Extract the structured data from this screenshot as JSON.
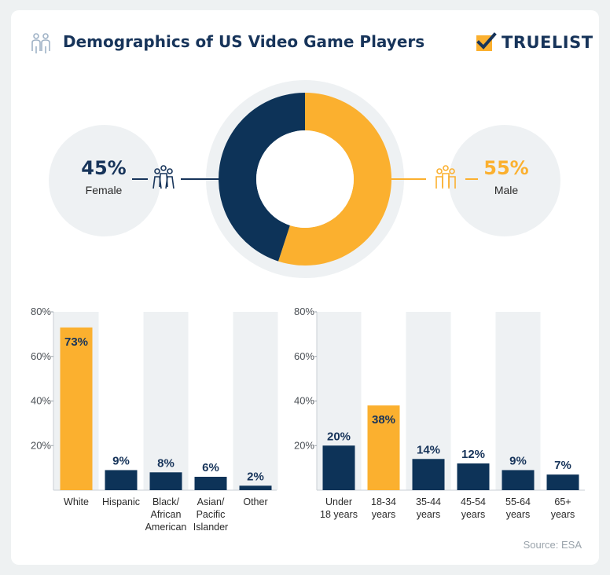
{
  "header": {
    "title": "Demographics of US Video Game Players",
    "logo_text": "TRUELIST"
  },
  "gender": {
    "female": {
      "percent": "45%",
      "label": "Female",
      "value": 45
    },
    "male": {
      "percent": "55%",
      "label": "Male",
      "value": 55
    }
  },
  "colors": {
    "navy": "#0d3358",
    "orange": "#fbb02f",
    "band": "#eef1f3"
  },
  "source": "Source: ESA",
  "chart_data": [
    {
      "type": "pie",
      "style": "donut",
      "categories": [
        "Female",
        "Male"
      ],
      "values": [
        45,
        55
      ]
    },
    {
      "type": "bar",
      "categories": [
        [
          "White"
        ],
        [
          "Hispanic"
        ],
        [
          "Black/",
          "African",
          "American"
        ],
        [
          "Asian/",
          "Pacific",
          "Islander"
        ],
        [
          "Other"
        ]
      ],
      "values": [
        73,
        9,
        8,
        6,
        2
      ],
      "value_labels": [
        "73%",
        "9%",
        "8%",
        "6%",
        "2%"
      ],
      "highlight_index": 0,
      "ylim": [
        0,
        80
      ],
      "yticks": [
        "20%",
        "40%",
        "60%",
        "80%"
      ],
      "ytick_values": [
        20,
        40,
        60,
        80
      ]
    },
    {
      "type": "bar",
      "categories": [
        [
          "Under",
          "18 years"
        ],
        [
          "18-34",
          "years"
        ],
        [
          "35-44",
          "years"
        ],
        [
          "45-54",
          "years"
        ],
        [
          "55-64",
          "years"
        ],
        [
          "65+",
          "years"
        ]
      ],
      "values": [
        20,
        38,
        14,
        12,
        9,
        7
      ],
      "value_labels": [
        "20%",
        "38%",
        "14%",
        "12%",
        "9%",
        "7%"
      ],
      "highlight_index": 1,
      "ylim": [
        0,
        80
      ],
      "yticks": [
        "20%",
        "40%",
        "60%",
        "80%"
      ],
      "ytick_values": [
        20,
        40,
        60,
        80
      ]
    }
  ]
}
